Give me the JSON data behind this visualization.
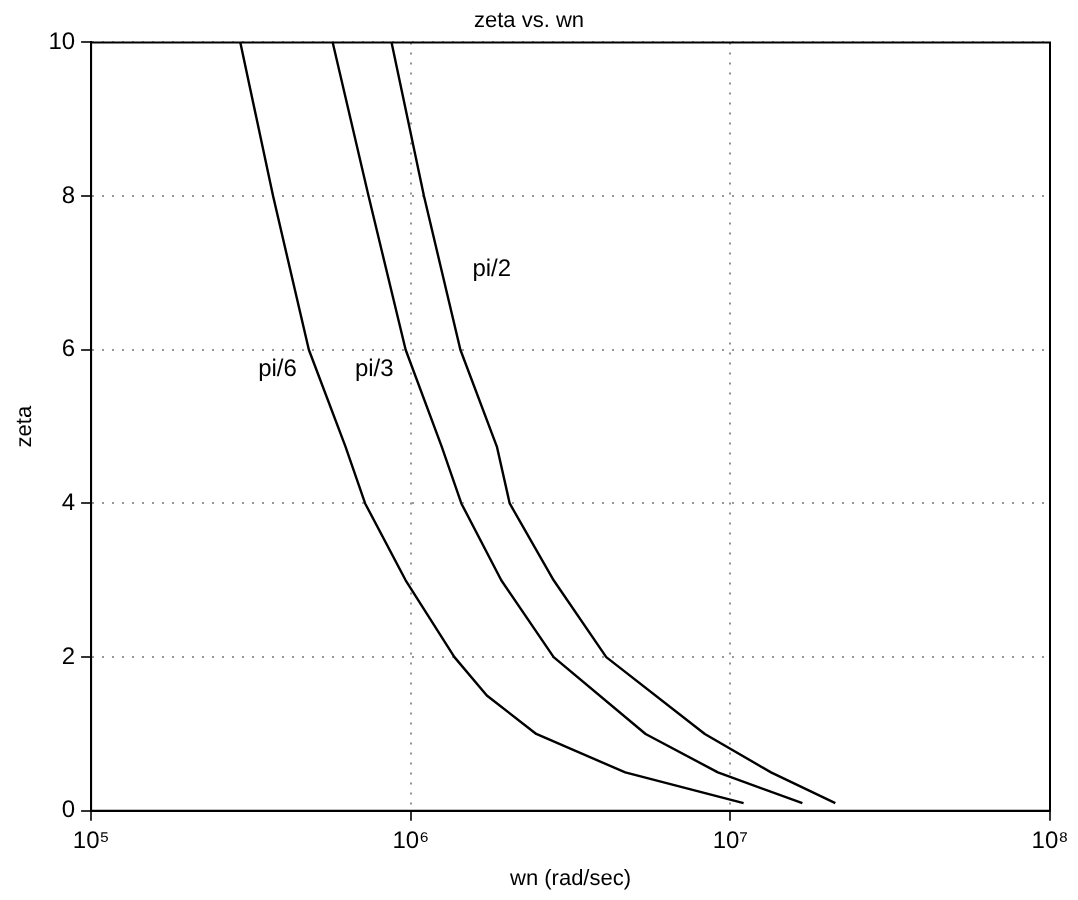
{
  "chart_data": {
    "type": "line",
    "title": "zeta vs. wn",
    "xlabel": "wn (rad/sec)",
    "ylabel": "zeta",
    "log": "x",
    "grid": true,
    "legend": false,
    "marker": "none",
    "line_style": "solid",
    "xlim": [
      100000,
      100000000
    ],
    "xticks": [
      {
        "value": 100000,
        "label": "10⁵"
      },
      {
        "value": 1000000,
        "label": "10⁶"
      },
      {
        "value": 10000000,
        "label": "10⁷"
      },
      {
        "value": 100000000,
        "label": "10⁸"
      }
    ],
    "ylim": [
      0,
      10
    ],
    "yticks": [
      0,
      2,
      4,
      6,
      8,
      10
    ],
    "series": [
      {
        "name": "pi/6",
        "color": "#000000",
        "x": [
          293000,
          371000,
          480000,
          625000,
          720000,
          964000,
          1370000,
          1730000,
          2470000,
          4690000,
          11000000
        ],
        "values": [
          10,
          8,
          6,
          4.74,
          4,
          3,
          2,
          1.5,
          1,
          0.5,
          0.1
        ]
      },
      {
        "name": "pi/3",
        "color": "#000000",
        "x": [
          570000,
          738000,
          964000,
          1250000,
          1440000,
          1920000,
          2800000,
          5430000,
          9140000,
          16800000
        ],
        "values": [
          10,
          8,
          6,
          4.74,
          4,
          3,
          2,
          1,
          0.5,
          0.1
        ]
      },
      {
        "name": "pi/2",
        "color": "#000000",
        "x": [
          871000,
          1100000,
          1430000,
          1860000,
          2040000,
          2800000,
          4090000,
          8320000,
          13400000,
          21300000
        ],
        "values": [
          10,
          8,
          6,
          4.74,
          4,
          3,
          2,
          1,
          0.5,
          0.1
        ]
      }
    ]
  }
}
